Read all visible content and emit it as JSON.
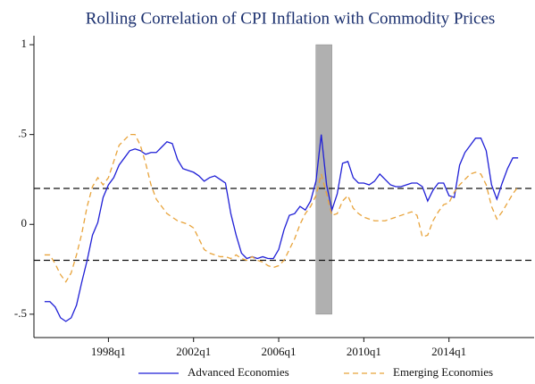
{
  "chart_data": {
    "type": "line",
    "title": "Rolling Correlation of CPI Inflation with Commodity Prices",
    "x": [
      "1995q1",
      "1995q2",
      "1995q3",
      "1995q4",
      "1996q1",
      "1996q2",
      "1996q3",
      "1996q4",
      "1997q1",
      "1997q2",
      "1997q3",
      "1997q4",
      "1998q1",
      "1998q2",
      "1998q3",
      "1998q4",
      "1999q1",
      "1999q2",
      "1999q3",
      "1999q4",
      "2000q1",
      "2000q2",
      "2000q3",
      "2000q4",
      "2001q1",
      "2001q2",
      "2001q3",
      "2001q4",
      "2002q1",
      "2002q2",
      "2002q3",
      "2002q4",
      "2003q1",
      "2003q2",
      "2003q3",
      "2003q4",
      "2004q1",
      "2004q2",
      "2004q3",
      "2004q4",
      "2005q1",
      "2005q2",
      "2005q3",
      "2005q4",
      "2006q1",
      "2006q2",
      "2006q3",
      "2006q4",
      "2007q1",
      "2007q2",
      "2007q3",
      "2007q4",
      "2008q1",
      "2008q2",
      "2008q3",
      "2008q4",
      "2009q1",
      "2009q2",
      "2009q3",
      "2009q4",
      "2010q1",
      "2010q2",
      "2010q3",
      "2010q4",
      "2011q1",
      "2011q2",
      "2011q3",
      "2011q4",
      "2012q1",
      "2012q2",
      "2012q3",
      "2012q4",
      "2013q1",
      "2013q2",
      "2013q3",
      "2013q4",
      "2014q1",
      "2014q2",
      "2014q3",
      "2014q4",
      "2015q1",
      "2015q2",
      "2015q3",
      "2015q4",
      "2016q1",
      "2016q2",
      "2016q3",
      "2016q4",
      "2017q1",
      "2017q2"
    ],
    "series": [
      {
        "name": "Advanced Economies",
        "color": "#1f1fd6",
        "dash": false,
        "values": [
          -0.43,
          -0.43,
          -0.46,
          -0.52,
          -0.54,
          -0.52,
          -0.45,
          -0.32,
          -0.2,
          -0.06,
          0.01,
          0.15,
          0.22,
          0.26,
          0.33,
          0.37,
          0.41,
          0.42,
          0.41,
          0.39,
          0.4,
          0.4,
          0.43,
          0.46,
          0.45,
          0.36,
          0.31,
          0.3,
          0.29,
          0.27,
          0.24,
          0.26,
          0.27,
          0.25,
          0.23,
          0.06,
          -0.06,
          -0.16,
          -0.19,
          -0.18,
          -0.19,
          -0.18,
          -0.19,
          -0.19,
          -0.14,
          -0.03,
          0.05,
          0.06,
          0.1,
          0.08,
          0.13,
          0.24,
          0.5,
          0.22,
          0.08,
          0.17,
          0.34,
          0.35,
          0.26,
          0.23,
          0.23,
          0.22,
          0.24,
          0.28,
          0.25,
          0.22,
          0.21,
          0.21,
          0.22,
          0.23,
          0.23,
          0.21,
          0.13,
          0.19,
          0.23,
          0.23,
          0.16,
          0.15,
          0.33,
          0.4,
          0.44,
          0.48,
          0.48,
          0.41,
          0.22,
          0.14,
          0.23,
          0.31,
          0.37,
          0.37
        ]
      },
      {
        "name": "Emerging Economies",
        "color": "#e8a33a",
        "dash": true,
        "values": [
          -0.17,
          -0.17,
          -0.22,
          -0.28,
          -0.32,
          -0.27,
          -0.17,
          -0.05,
          0.1,
          0.21,
          0.26,
          0.22,
          0.26,
          0.35,
          0.44,
          0.47,
          0.5,
          0.5,
          0.44,
          0.34,
          0.22,
          0.14,
          0.1,
          0.06,
          0.04,
          0.02,
          0.01,
          0.0,
          -0.02,
          -0.08,
          -0.14,
          -0.16,
          -0.17,
          -0.18,
          -0.18,
          -0.19,
          -0.17,
          -0.19,
          -0.2,
          -0.18,
          -0.2,
          -0.21,
          -0.23,
          -0.24,
          -0.23,
          -0.2,
          -0.14,
          -0.08,
          0.0,
          0.06,
          0.1,
          0.16,
          0.28,
          0.17,
          0.05,
          0.06,
          0.13,
          0.16,
          0.09,
          0.06,
          0.04,
          0.03,
          0.02,
          0.02,
          0.02,
          0.03,
          0.04,
          0.05,
          0.06,
          0.07,
          0.05,
          -0.07,
          -0.06,
          0.02,
          0.07,
          0.11,
          0.12,
          0.18,
          0.22,
          0.25,
          0.28,
          0.29,
          0.28,
          0.22,
          0.1,
          0.03,
          0.07,
          0.12,
          0.17,
          0.21
        ]
      }
    ],
    "xlim": [
      "1994q3",
      "2018q1"
    ],
    "xticks": [
      "1998q1",
      "2002q1",
      "2006q1",
      "2010q1",
      "2014q1"
    ],
    "ylim": [
      -0.63,
      1.05
    ],
    "yticks": [
      {
        "value": -0.5,
        "label": "-.5"
      },
      0,
      {
        "value": 0.5,
        "label": ".5"
      },
      1
    ],
    "hlines": [
      0.2,
      -0.2
    ],
    "shade": {
      "x": [
        "2007q4",
        "2008q3"
      ],
      "y": [
        -0.5,
        1
      ],
      "color": "#b0b0b0"
    },
    "legend": "bottom"
  }
}
